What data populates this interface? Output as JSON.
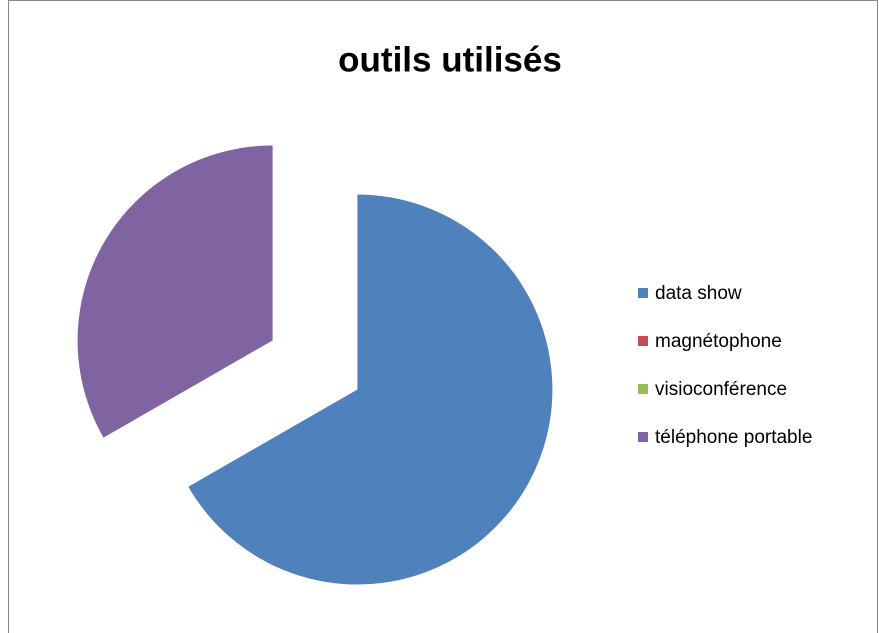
{
  "chart_data": {
    "type": "pie",
    "title": "outils utilisés",
    "categories": [
      "data show",
      "magnétophone",
      "visioconférence",
      "téléphone portable"
    ],
    "values": [
      66.7,
      0,
      0,
      33.3
    ],
    "colors": [
      "#4f81bd",
      "#c0504d",
      "#9bbb59",
      "#8064a2"
    ],
    "exploded": true,
    "legend": "right"
  }
}
